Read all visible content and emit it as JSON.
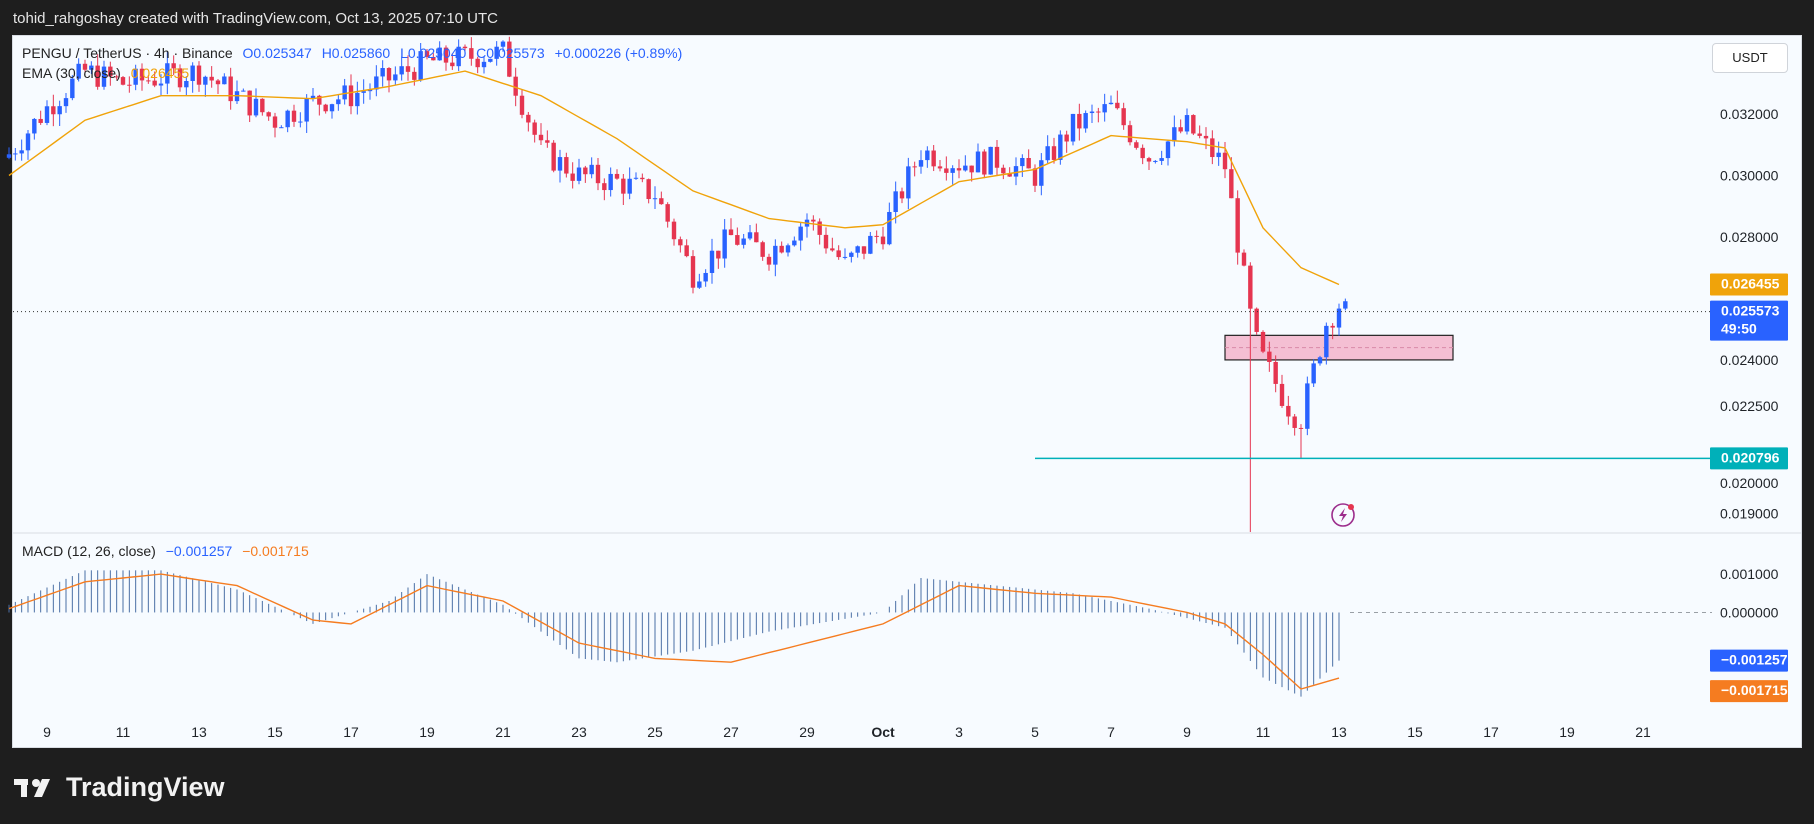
{
  "header": {
    "credit": "tohid_rahgoshay created with TradingView.com, Oct 13, 2025 07:10 UTC"
  },
  "footer": {
    "brand": "TradingView"
  },
  "currency_button": "USDT",
  "legend": {
    "symbol": "PENGU / TetherUS · 4h · Binance",
    "open": "O0.025347",
    "high": "H0.025860",
    "low": "L0.025040",
    "close": "C0.025573",
    "change": "+0.000226 (+0.89%)",
    "ema_label": "EMA (30, close)",
    "ema_value": "0.026455",
    "macd_label": "MACD (12, 26, close)",
    "macd_value": "−0.001257",
    "signal_value": "−0.001715"
  },
  "colors": {
    "up": "#2962ff",
    "down": "#e53550",
    "ema": "#f0a30a",
    "macd_hist": "#4a6fa5",
    "macd_line": "#2962ff",
    "signal_line": "#f57c20",
    "support_line": "#00b0b9",
    "zone_fill": "#f4bfd3",
    "background": "#f7fbff"
  },
  "chart_data": [
    {
      "type": "candlestick",
      "title": "PENGU / TetherUS · 4h · Binance",
      "x_tick_labels": [
        "9",
        "11",
        "13",
        "15",
        "17",
        "19",
        "21",
        "23",
        "25",
        "27",
        "29",
        "Oct",
        "3",
        "5",
        "7",
        "9",
        "11",
        "13",
        "15",
        "17",
        "19",
        "21"
      ],
      "y_tick_labels": [
        "0.032000",
        "0.030000",
        "0.028000",
        "0.024000",
        "0.022500",
        "0.020000",
        "0.019000"
      ],
      "ylim": [
        0.0184,
        0.0335
      ],
      "series_keypoints": {
        "close_path": [
          [
            "Sep 8",
            0.0307
          ],
          [
            "Sep 9",
            0.0322
          ],
          [
            "Sep 10",
            0.0334
          ],
          [
            "Sep 11",
            0.033
          ],
          [
            "Sep 13",
            0.0334
          ],
          [
            "Sep 15",
            0.0318
          ],
          [
            "Sep 16",
            0.0324
          ],
          [
            "Sep 17",
            0.0326
          ],
          [
            "Sep 19",
            0.0337
          ],
          [
            "Sep 21",
            0.034
          ],
          [
            "Sep 22",
            0.0308
          ],
          [
            "Sep 23",
            0.03
          ],
          [
            "Sep 24",
            0.0298
          ],
          [
            "Sep 25",
            0.0294
          ],
          [
            "Sep 26",
            0.0268
          ],
          [
            "Sep 27",
            0.028
          ],
          [
            "Sep 28",
            0.0275
          ],
          [
            "Sep 29",
            0.0286
          ],
          [
            "Sep 30",
            0.0271
          ],
          [
            "Oct 1",
            0.0282
          ],
          [
            "Oct 2",
            0.0308
          ],
          [
            "Oct 3",
            0.0304
          ],
          [
            "Oct 4",
            0.0305
          ],
          [
            "Oct 5",
            0.03
          ],
          [
            "Oct 6",
            0.0316
          ],
          [
            "Oct 7",
            0.0322
          ],
          [
            "Oct 8",
            0.0306
          ],
          [
            "Oct 9",
            0.0316
          ],
          [
            "Oct 10",
            0.0303
          ],
          [
            "Oct 10 18h",
            0.0248
          ],
          [
            "Oct 11",
            0.024
          ],
          [
            "Oct 11 18h",
            0.0223
          ],
          [
            "Oct 12",
            0.0221
          ],
          [
            "Oct 12 16h",
            0.0252
          ],
          [
            "Oct 13",
            0.0258
          ],
          [
            "Oct 13 04h",
            0.025573
          ]
        ],
        "ema_30": [
          [
            "Sep 8",
            0.03
          ],
          [
            "Sep 10",
            0.0318
          ],
          [
            "Sep 12",
            0.0326
          ],
          [
            "Sep 14",
            0.0326
          ],
          [
            "Sep 16",
            0.0325
          ],
          [
            "Sep 18",
            0.0329
          ],
          [
            "Sep 20",
            0.0334
          ],
          [
            "Sep 22",
            0.0326
          ],
          [
            "Sep 24",
            0.0312
          ],
          [
            "Sep 26",
            0.0295
          ],
          [
            "Sep 28",
            0.0286
          ],
          [
            "Sep 30",
            0.0283
          ],
          [
            "Oct 1",
            0.0284
          ],
          [
            "Oct 3",
            0.0298
          ],
          [
            "Oct 5",
            0.0302
          ],
          [
            "Oct 7",
            0.0313
          ],
          [
            "Oct 9",
            0.0311
          ],
          [
            "Oct 10",
            0.0309
          ],
          [
            "Oct 11",
            0.0283
          ],
          [
            "Oct 12",
            0.027
          ],
          [
            "Oct 13",
            0.026455
          ]
        ]
      },
      "wick_extremes": {
        "spike_low": 0.0184,
        "recent_low": 0.020796
      },
      "price_labels": {
        "ema": "0.026455",
        "last": "0.025573",
        "countdown": "49:50",
        "support": "0.020796"
      },
      "annotations": {
        "demand_zone": {
          "from": "Oct 10",
          "to": "Oct 16",
          "low": 0.024,
          "high": 0.0248
        },
        "support_line": {
          "from": "Oct 5",
          "to": "Oct 21",
          "value": 0.020796
        }
      },
      "grid": false
    },
    {
      "type": "line",
      "title": "MACD (12, 26, close)",
      "y_tick_labels": [
        "0.001000",
        "0.000000"
      ],
      "ylim": [
        -0.0026,
        0.0015
      ],
      "series": [
        {
          "name": "MACD",
          "values": [
            [
              "Sep 8",
              0.0002
            ],
            [
              "Sep 10",
              0.0011
            ],
            [
              "Sep 12",
              0.0011
            ],
            [
              "Sep 14",
              0.0006
            ],
            [
              "Sep 16",
              -0.0003
            ],
            [
              "Sep 18",
              0.0003
            ],
            [
              "Sep 19",
              0.001
            ],
            [
              "Sep 21",
              0.0002
            ],
            [
              "Sep 23",
              -0.0012
            ],
            [
              "Sep 24",
              -0.0013
            ],
            [
              "Sep 26",
              -0.001
            ],
            [
              "Sep 28",
              -0.0005
            ],
            [
              "Oct 1",
              0.0
            ],
            [
              "Oct 2",
              0.0009
            ],
            [
              "Oct 4",
              0.0007
            ],
            [
              "Oct 6",
              0.0005
            ],
            [
              "Oct 8",
              0.0001
            ],
            [
              "Oct 10",
              -0.0004
            ],
            [
              "Oct 11",
              -0.0017
            ],
            [
              "Oct 12",
              -0.0022
            ],
            [
              "Oct 13",
              -0.001257
            ]
          ]
        },
        {
          "name": "Signal",
          "values": [
            [
              "Sep 8",
              0.0001
            ],
            [
              "Sep 10",
              0.0008
            ],
            [
              "Sep 12",
              0.001
            ],
            [
              "Sep 14",
              0.0007
            ],
            [
              "Sep 16",
              -0.0002
            ],
            [
              "Sep 17",
              -0.0003
            ],
            [
              "Sep 19",
              0.0007
            ],
            [
              "Sep 21",
              0.0003
            ],
            [
              "Sep 23",
              -0.0008
            ],
            [
              "Sep 25",
              -0.0012
            ],
            [
              "Sep 27",
              -0.0013
            ],
            [
              "Sep 29",
              -0.0008
            ],
            [
              "Oct 1",
              -0.0003
            ],
            [
              "Oct 3",
              0.0007
            ],
            [
              "Oct 5",
              0.0005
            ],
            [
              "Oct 7",
              0.0004
            ],
            [
              "Oct 9",
              0.0
            ],
            [
              "Oct 10",
              -0.0003
            ],
            [
              "Oct 11",
              -0.0011
            ],
            [
              "Oct 12",
              -0.002
            ],
            [
              "Oct 13",
              -0.001715
            ]
          ]
        }
      ],
      "price_labels": {
        "macd": "−0.001257",
        "signal": "−0.001715"
      },
      "grid": false
    }
  ]
}
